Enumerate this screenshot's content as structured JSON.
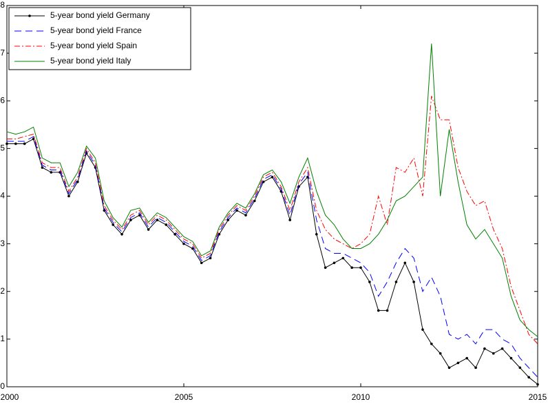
{
  "chart_data": {
    "type": "line",
    "x": [
      2000,
      2000.25,
      2000.5,
      2000.75,
      2001,
      2001.25,
      2001.5,
      2001.75,
      2002,
      2002.25,
      2002.5,
      2002.75,
      2003,
      2003.25,
      2003.5,
      2003.75,
      2004,
      2004.25,
      2004.5,
      2004.75,
      2005,
      2005.25,
      2005.5,
      2005.75,
      2006,
      2006.25,
      2006.5,
      2006.75,
      2007,
      2007.25,
      2007.5,
      2007.75,
      2008,
      2008.25,
      2008.5,
      2008.75,
      2009,
      2009.25,
      2009.5,
      2009.75,
      2010,
      2010.25,
      2010.5,
      2010.75,
      2011,
      2011.25,
      2011.5,
      2011.75,
      2012,
      2012.25,
      2012.5,
      2012.75,
      2013,
      2013.25,
      2013.5,
      2013.75,
      2014,
      2014.25,
      2014.5,
      2014.75,
      2015
    ],
    "series": [
      {
        "name": "5-year bond yield Germany",
        "color": "#000000",
        "dash": "",
        "marker": true,
        "values": [
          5.1,
          5.1,
          5.1,
          5.2,
          4.6,
          4.5,
          4.5,
          4.0,
          4.3,
          4.9,
          4.6,
          3.7,
          3.4,
          3.2,
          3.5,
          3.6,
          3.3,
          3.5,
          3.4,
          3.2,
          3.0,
          2.9,
          2.6,
          2.7,
          3.2,
          3.5,
          3.7,
          3.6,
          3.9,
          4.3,
          4.4,
          4.1,
          3.5,
          4.2,
          4.4,
          3.2,
          2.5,
          2.6,
          2.7,
          2.5,
          2.5,
          2.2,
          1.6,
          1.6,
          2.2,
          2.6,
          2.2,
          1.2,
          0.9,
          0.7,
          0.4,
          0.5,
          0.6,
          0.4,
          0.8,
          0.7,
          0.8,
          0.6,
          0.4,
          0.2,
          0.05
        ]
      },
      {
        "name": "5-year bond yield France",
        "color": "#0000ff",
        "dash": "10,6",
        "marker": false,
        "values": [
          5.15,
          5.15,
          5.15,
          5.25,
          4.65,
          4.55,
          4.55,
          4.05,
          4.35,
          4.95,
          4.65,
          3.75,
          3.45,
          3.25,
          3.55,
          3.65,
          3.35,
          3.55,
          3.45,
          3.25,
          3.05,
          2.95,
          2.65,
          2.75,
          3.25,
          3.55,
          3.75,
          3.65,
          3.95,
          4.35,
          4.45,
          4.15,
          3.6,
          4.25,
          4.5,
          3.5,
          2.9,
          2.8,
          2.8,
          2.7,
          2.6,
          2.4,
          1.9,
          2.2,
          2.6,
          2.9,
          2.7,
          2.0,
          2.3,
          1.9,
          1.1,
          1.0,
          1.1,
          0.9,
          1.2,
          1.2,
          1.0,
          0.9,
          0.6,
          0.4,
          0.2
        ]
      },
      {
        "name": "5-year bond yield Spain",
        "color": "#ff0000",
        "dash": "8,3,2,3",
        "marker": false,
        "values": [
          5.2,
          5.2,
          5.25,
          5.3,
          4.7,
          4.6,
          4.6,
          4.1,
          4.4,
          5.0,
          4.7,
          3.8,
          3.5,
          3.3,
          3.6,
          3.7,
          3.4,
          3.6,
          3.5,
          3.3,
          3.1,
          3.0,
          2.7,
          2.8,
          3.3,
          3.6,
          3.8,
          3.7,
          4.0,
          4.4,
          4.5,
          4.2,
          3.7,
          4.3,
          4.6,
          3.7,
          3.3,
          3.1,
          3.0,
          2.9,
          3.0,
          3.2,
          4.0,
          3.4,
          4.6,
          4.5,
          4.8,
          4.0,
          6.1,
          5.6,
          5.6,
          4.6,
          4.1,
          3.8,
          3.9,
          3.3,
          2.9,
          2.1,
          1.6,
          1.1,
          0.9
        ]
      },
      {
        "name": "5-year bond yield Italy",
        "color": "#008000",
        "dash": "",
        "marker": false,
        "values": [
          5.35,
          5.3,
          5.35,
          5.45,
          4.8,
          4.7,
          4.7,
          4.2,
          4.5,
          5.05,
          4.8,
          3.9,
          3.55,
          3.35,
          3.7,
          3.75,
          3.45,
          3.65,
          3.55,
          3.35,
          3.15,
          3.05,
          2.75,
          2.85,
          3.35,
          3.65,
          3.85,
          3.75,
          4.05,
          4.45,
          4.55,
          4.3,
          3.85,
          4.4,
          4.8,
          4.1,
          3.6,
          3.4,
          3.1,
          2.9,
          2.9,
          3.0,
          3.2,
          3.5,
          3.9,
          4.0,
          4.2,
          4.4,
          7.2,
          4.0,
          5.4,
          4.3,
          3.4,
          3.1,
          3.3,
          3.0,
          2.7,
          1.9,
          1.4,
          1.2,
          1.05
        ]
      }
    ],
    "xlim": [
      2000,
      2015
    ],
    "xticks": [
      2000,
      2005,
      2010,
      2015
    ],
    "ylim": [
      0,
      8
    ],
    "yticks": [
      0,
      1,
      2,
      3,
      4,
      5,
      6,
      7,
      8
    ],
    "legend": "upper left"
  }
}
